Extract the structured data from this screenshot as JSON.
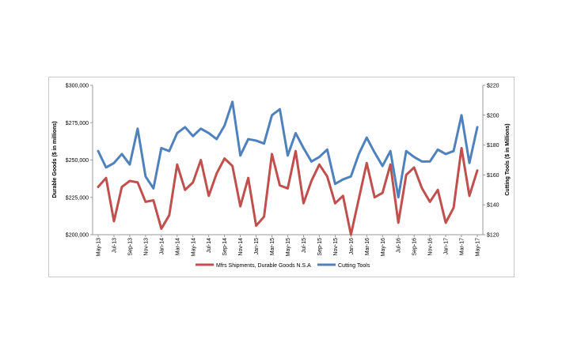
{
  "chart_data": {
    "type": "line",
    "categories": [
      "May-13",
      "Jun-13",
      "Jul-13",
      "Aug-13",
      "Sep-13",
      "Oct-13",
      "Nov-13",
      "Dec-13",
      "Jan-14",
      "Feb-14",
      "Mar-14",
      "Apr-14",
      "May-14",
      "Jun-14",
      "Jul-14",
      "Aug-14",
      "Sep-14",
      "Oct-14",
      "Nov-14",
      "Dec-14",
      "Jan-15",
      "Feb-15",
      "Mar-15",
      "Apr-15",
      "May-15",
      "Jun-15",
      "Jul-15",
      "Aug-15",
      "Sep-15",
      "Oct-15",
      "Nov-15",
      "Dec-15",
      "Jan-16",
      "Feb-16",
      "Mar-16",
      "Apr-16",
      "May-16",
      "Jun-16",
      "Jul-16",
      "Aug-16",
      "Sep-16",
      "Oct-16",
      "Nov-16",
      "Dec-16",
      "Jan-17",
      "Feb-17",
      "Mar-17",
      "Apr-17",
      "May-17"
    ],
    "tick_labels": [
      "May-13",
      "Jul-13",
      "Sep-13",
      "Nov-13",
      "Jan-14",
      "Mar-14",
      "May-14",
      "Jul-14",
      "Sep-14",
      "Nov-14",
      "Jan-15",
      "Mar-15",
      "May-15",
      "Jul-15",
      "Sep-15",
      "Nov-15",
      "Jan-16",
      "Mar-16",
      "May-16",
      "Jul-16",
      "Sep-16",
      "Nov-16",
      "Jan-17",
      "Mar-17",
      "May-17"
    ],
    "series": [
      {
        "name": "Mfrs Shipments, Durable Goods N.S.A",
        "axis": "left",
        "color": "#c0504d",
        "values": [
          232000,
          238000,
          209000,
          232000,
          236000,
          235000,
          222000,
          223000,
          204000,
          213000,
          247000,
          230000,
          235000,
          250000,
          226000,
          241000,
          251000,
          246000,
          219000,
          238000,
          206000,
          212000,
          254000,
          233000,
          231000,
          256000,
          221000,
          236000,
          247000,
          239000,
          221000,
          226000,
          200000,
          224000,
          248000,
          225000,
          228000,
          247000,
          208000,
          240000,
          245000,
          231000,
          222000,
          230000,
          208000,
          218000,
          258000,
          226000,
          243000
        ]
      },
      {
        "name": "Cutting Tools",
        "axis": "right",
        "color": "#4f81bd",
        "values": [
          176,
          165,
          168,
          174,
          167,
          191,
          159,
          151,
          178,
          176,
          188,
          192,
          186,
          191,
          188,
          184,
          193,
          209,
          173,
          184,
          183,
          181,
          200,
          204,
          173,
          188,
          178,
          169,
          172,
          177,
          154,
          157,
          159,
          174,
          185,
          175,
          166,
          176,
          145,
          176,
          172,
          169,
          169,
          177,
          174,
          176,
          200,
          168,
          192
        ]
      }
    ],
    "ylabel_left": "Durable Goods ($ in millions)",
    "ylabel_right": "Cutting Tools ($ in Millions)",
    "ylim_left": [
      200000,
      300000
    ],
    "ylim_right": [
      120,
      220
    ],
    "yticks_left": [
      "$200,000",
      "$225,000",
      "$250,000",
      "$275,000",
      "$300,000"
    ],
    "yticks_right": [
      "$120",
      "$140",
      "$160",
      "$180",
      "$200",
      "$220"
    ],
    "grid": false,
    "legend_position": "bottom"
  }
}
